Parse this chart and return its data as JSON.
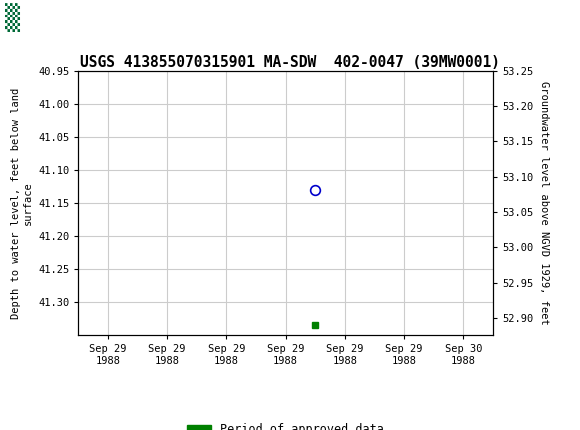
{
  "title": "USGS 413855070315901 MA-SDW  402-0047 (39MW0001)",
  "title_fontsize": 10.5,
  "header_color": "#006937",
  "ylabel_left": "Depth to water level, feet below land\nsurface",
  "ylabel_right": "Groundwater level above NGVD 1929, feet",
  "ylim_left_top": 40.95,
  "ylim_left_bottom": 41.35,
  "ylim_right_top": 53.25,
  "ylim_right_bottom": 52.875,
  "yticks_left": [
    40.95,
    41.0,
    41.05,
    41.1,
    41.15,
    41.2,
    41.25,
    41.3
  ],
  "ytick_labels_left": [
    "40.95",
    "41.00",
    "41.05",
    "41.10",
    "41.15",
    "41.20",
    "41.25",
    "41.30"
  ],
  "yticks_right": [
    53.25,
    53.2,
    53.15,
    53.1,
    53.05,
    53.0,
    52.95,
    52.9
  ],
  "ytick_labels_right": [
    "53.25",
    "53.20",
    "53.15",
    "53.10",
    "53.05",
    "53.00",
    "52.95",
    "52.90"
  ],
  "x_data_circle": 3.5,
  "y_data_circle": 41.13,
  "x_data_square": 3.5,
  "y_data_square": 41.335,
  "circle_color": "#0000cc",
  "square_color": "#008000",
  "xtick_labels": [
    "Sep 29\n1988",
    "Sep 29\n1988",
    "Sep 29\n1988",
    "Sep 29\n1988",
    "Sep 29\n1988",
    "Sep 29\n1988",
    "Sep 30\n1988"
  ],
  "xtick_positions": [
    0,
    1,
    2,
    3,
    4,
    5,
    6
  ],
  "xlim": [
    -0.5,
    6.5
  ],
  "grid_color": "#cccccc",
  "background_color": "#ffffff",
  "legend_label": "Period of approved data",
  "legend_color": "#008000",
  "font_family": "monospace",
  "tick_fontsize": 7.5,
  "label_fontsize": 7.5
}
